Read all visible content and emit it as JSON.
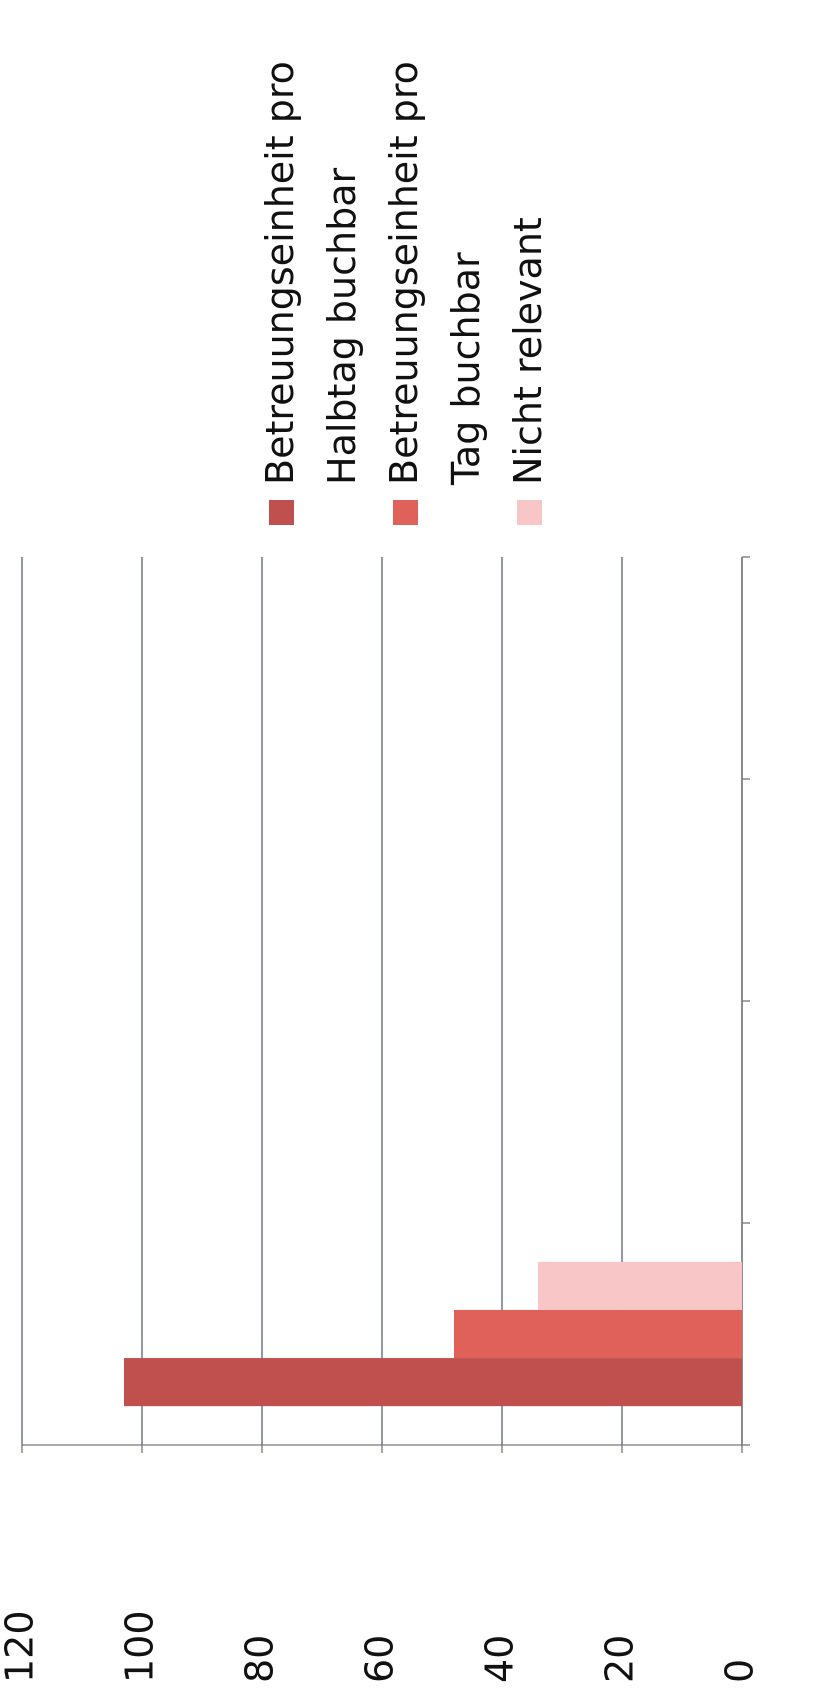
{
  "chart_data": {
    "type": "bar",
    "categories": [
      null,
      null,
      null,
      null
    ],
    "series": [
      {
        "name": "Betreuungseinheit pro Halbtag buchbar",
        "color": "#c0504d",
        "values": [
          103,
          0,
          0,
          0
        ]
      },
      {
        "name": "Betreuungseinheit pro Tag buchbar",
        "color": "#e0605a",
        "values": [
          48,
          0,
          0,
          0
        ]
      },
      {
        "name": "Nicht relevant",
        "color": "#f8c6c6",
        "values": [
          34,
          0,
          0,
          0
        ]
      }
    ],
    "ylim": [
      0,
      120
    ],
    "yticks": [
      0,
      20,
      40,
      60,
      80,
      100,
      120
    ],
    "grid": true,
    "legend": "right"
  }
}
